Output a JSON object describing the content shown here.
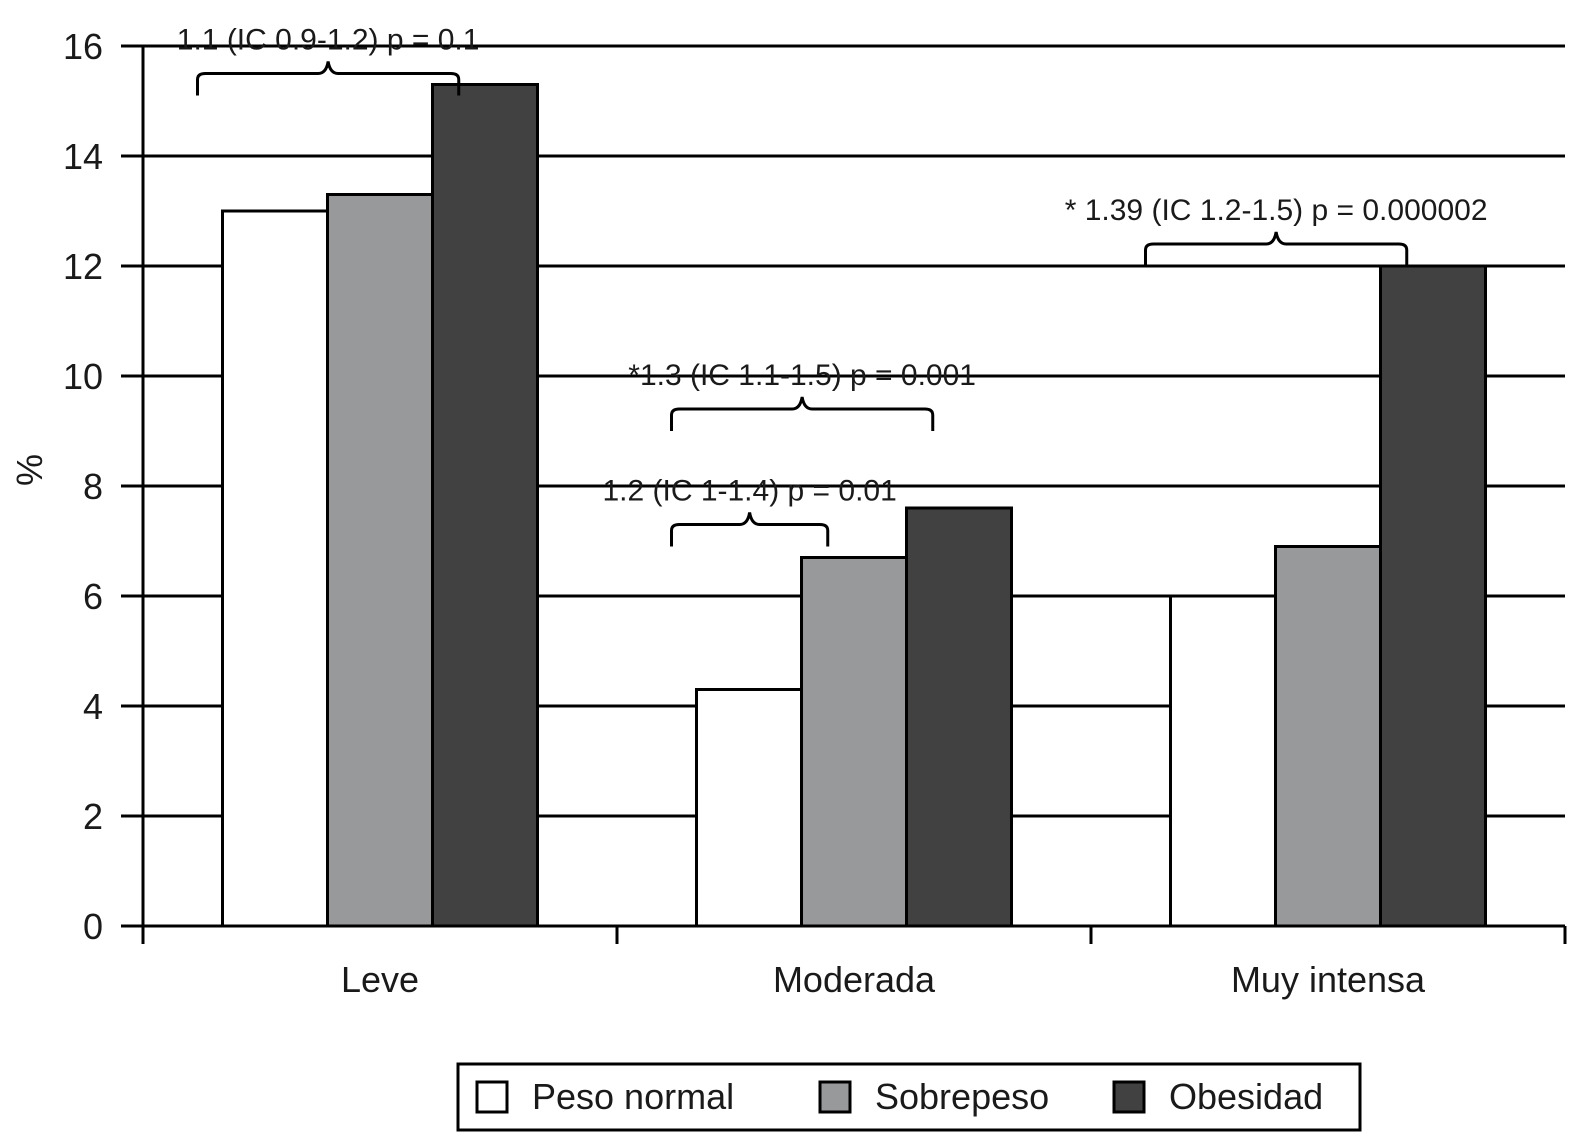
{
  "chart_data": {
    "type": "bar",
    "categories": [
      "Leve",
      "Moderada",
      "Muy intensa"
    ],
    "series": [
      {
        "name": "Peso normal",
        "values": [
          13.0,
          4.3,
          6.0
        ],
        "color": "#ffffff"
      },
      {
        "name": "Sobrepeso",
        "values": [
          13.3,
          6.7,
          6.9
        ],
        "color": "#98999b"
      },
      {
        "name": "Obesidad",
        "values": [
          15.3,
          7.6,
          12.0
        ],
        "color": "#414141"
      }
    ],
    "ylabel": "%",
    "ylim": [
      0,
      16
    ],
    "yticks": [
      0,
      2,
      4,
      6,
      8,
      10,
      12,
      14,
      16
    ],
    "grid": true,
    "legend_position": "bottom",
    "annotations": [
      {
        "text": "1.1 (IC 0.9-1.2) p = 0.1",
        "category": 0,
        "from_series": 0,
        "to_series": 2,
        "level": 15.5
      },
      {
        "text": "1.2 (IC 1-1.4) p = 0.01",
        "category": 1,
        "from_series": 0,
        "to_series": 1,
        "level": 7.3
      },
      {
        "text": "*1.3 (IC 1.1-1.5) p = 0.001",
        "category": 1,
        "from_series": 0,
        "to_series": 2,
        "level": 9.4
      },
      {
        "text": "* 1.39 (IC 1.2-1.5) p = 0.000002",
        "category": 2,
        "from_series": 0,
        "to_series": 2,
        "level": 12.4
      }
    ]
  }
}
